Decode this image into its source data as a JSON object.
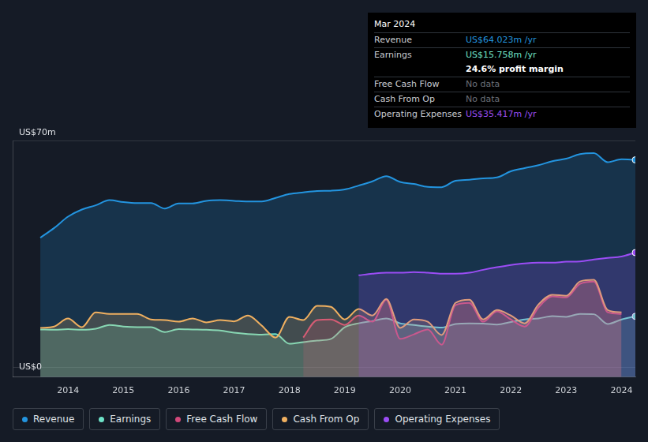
{
  "chart_data": {
    "type": "line",
    "x": [
      2013.5,
      2013.75,
      2014,
      2014.25,
      2014.5,
      2014.75,
      2015,
      2015.25,
      2015.5,
      2015.75,
      2016,
      2016.25,
      2016.5,
      2016.75,
      2017,
      2017.25,
      2017.5,
      2017.75,
      2018,
      2018.25,
      2018.5,
      2018.75,
      2019,
      2019.25,
      2019.5,
      2019.75,
      2020,
      2020.25,
      2020.5,
      2020.75,
      2021,
      2021.25,
      2021.5,
      2021.75,
      2022,
      2022.25,
      2022.5,
      2022.75,
      2023,
      2023.25,
      2023.5,
      2023.75,
      2024,
      2024.25
    ],
    "series": [
      {
        "name": "Revenue",
        "color": "#2394df",
        "values": [
          40,
          43,
          46.5,
          48.7,
          50,
          51.6,
          51,
          50.7,
          50.7,
          49,
          50.6,
          50.6,
          51.4,
          51.6,
          51.4,
          51.2,
          51.2,
          52.3,
          53.5,
          54,
          54.4,
          54.5,
          54.9,
          56.1,
          57.4,
          59,
          57.2,
          56.6,
          55.7,
          55.6,
          57.6,
          57.9,
          58.3,
          58.6,
          60.5,
          61.5,
          62.4,
          63.6,
          64.4,
          65.8,
          66.1,
          63.3,
          64.2,
          64.023
        ]
      },
      {
        "name": "Earnings",
        "color": "#6ee2c8",
        "values": [
          11.7,
          11.6,
          11.8,
          11.6,
          11.9,
          13.1,
          12.6,
          12.4,
          12.4,
          10.9,
          11.8,
          11.7,
          11.6,
          11.4,
          10.7,
          10.3,
          10.1,
          10.3,
          7.3,
          7.8,
          8.3,
          8.8,
          12.4,
          13.6,
          14.3,
          15.1,
          13.6,
          13.1,
          12.6,
          12.3,
          13.4,
          13.6,
          13.5,
          13.2,
          14,
          14.8,
          15.1,
          15.8,
          15.6,
          16.5,
          16.4,
          13.4,
          14.8,
          15.758
        ]
      },
      {
        "name": "Free Cash Flow",
        "color": "#d1487a",
        "values": [
          null,
          null,
          null,
          null,
          null,
          null,
          null,
          null,
          null,
          null,
          null,
          null,
          null,
          null,
          null,
          null,
          null,
          null,
          null,
          9.2,
          14.6,
          14.8,
          13.1,
          16,
          14.1,
          20.9,
          8.8,
          10.2,
          11.7,
          7,
          19.2,
          19.9,
          14.1,
          17.3,
          14.8,
          12.6,
          18.5,
          21.9,
          21.6,
          25.8,
          26.5,
          17,
          16.5,
          null
        ]
      },
      {
        "name": "Cash From Op",
        "color": "#f0b060",
        "values": [
          12.2,
          12.6,
          15.1,
          12.4,
          17,
          16.5,
          16.5,
          16.5,
          14.8,
          14.6,
          14.1,
          15.1,
          13.9,
          14.6,
          14.2,
          16,
          12.9,
          9.2,
          15.6,
          14.6,
          19,
          18.7,
          14.8,
          18,
          16,
          21.1,
          12.2,
          14.8,
          14.1,
          10,
          19.9,
          20.9,
          14.8,
          17.7,
          16,
          13.6,
          19.4,
          22.4,
          22.1,
          26.5,
          27,
          17.7,
          17,
          null
        ]
      },
      {
        "name": "Operating Expenses",
        "color": "#9b4df5",
        "values": [
          null,
          null,
          null,
          null,
          null,
          null,
          null,
          null,
          null,
          null,
          null,
          null,
          null,
          null,
          null,
          null,
          null,
          null,
          null,
          null,
          null,
          null,
          null,
          28.4,
          28.9,
          29.2,
          29.2,
          29.4,
          29.2,
          28.9,
          28.9,
          29.2,
          30.1,
          30.9,
          31.6,
          32.1,
          32.3,
          32.3,
          32.6,
          32.7,
          33.3,
          33.8,
          34.2,
          35.417
        ]
      }
    ],
    "xlim": [
      2013,
      2024.25
    ],
    "xticks": [
      2014,
      2015,
      2016,
      2017,
      2018,
      2019,
      2020,
      2021,
      2022,
      2023,
      2024
    ],
    "ylim": [
      -3,
      70
    ],
    "yticks": [
      {
        "value": 0,
        "label": "US$0"
      },
      {
        "value": 70,
        "label": "US$70m"
      }
    ],
    "grid": true,
    "legend": "bottom",
    "annotations": {
      "title": "Mar 2024",
      "rows": [
        {
          "label": "Revenue",
          "value": "US$64.023m /yr"
        },
        {
          "label": "Earnings",
          "value": "US$15.758m /yr",
          "note": "24.6% profit margin"
        },
        {
          "label": "Free Cash Flow",
          "value": "No data"
        },
        {
          "label": "Cash From Op",
          "value": "No data"
        },
        {
          "label": "Operating Expenses",
          "value": "US$35.417m /yr"
        }
      ]
    }
  }
}
